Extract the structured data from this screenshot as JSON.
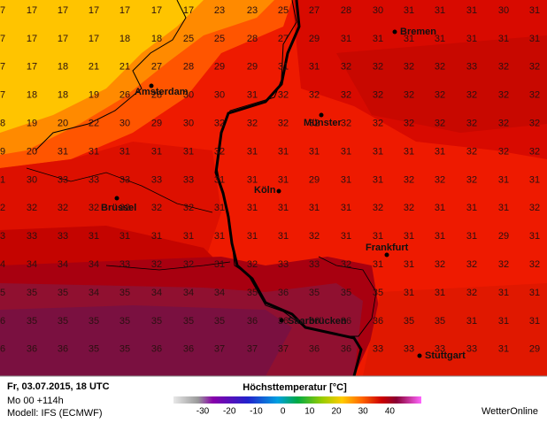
{
  "grid": [
    [
      7,
      17,
      17,
      17,
      17,
      17,
      17,
      23,
      23,
      25,
      27,
      28,
      30,
      31,
      31,
      31,
      30,
      31
    ],
    [
      7,
      17,
      17,
      17,
      18,
      18,
      25,
      25,
      28,
      27,
      29,
      31,
      31,
      31,
      31,
      31,
      31,
      31
    ],
    [
      7,
      17,
      18,
      21,
      21,
      27,
      28,
      29,
      29,
      31,
      31,
      32,
      32,
      32,
      32,
      33,
      32,
      32
    ],
    [
      7,
      18,
      18,
      19,
      26,
      28,
      30,
      30,
      31,
      32,
      32,
      32,
      32,
      32,
      32,
      32,
      32,
      32
    ],
    [
      8,
      19,
      20,
      22,
      30,
      29,
      30,
      32,
      32,
      32,
      32,
      32,
      32,
      32,
      32,
      32,
      32,
      32
    ],
    [
      9,
      20,
      31,
      31,
      31,
      31,
      31,
      32,
      31,
      31,
      31,
      31,
      31,
      31,
      31,
      32,
      32,
      32
    ],
    [
      1,
      30,
      33,
      33,
      33,
      33,
      33,
      31,
      31,
      31,
      29,
      31,
      31,
      32,
      32,
      32,
      31,
      31
    ],
    [
      2,
      32,
      32,
      32,
      32,
      32,
      32,
      31,
      31,
      31,
      31,
      31,
      32,
      32,
      31,
      31,
      31,
      32
    ],
    [
      3,
      33,
      33,
      31,
      31,
      31,
      31,
      31,
      31,
      31,
      32,
      31,
      31,
      31,
      31,
      31,
      29,
      31
    ],
    [
      4,
      34,
      34,
      34,
      33,
      32,
      32,
      31,
      32,
      33,
      33,
      32,
      31,
      31,
      32,
      32,
      32,
      32
    ],
    [
      5,
      35,
      35,
      34,
      35,
      34,
      34,
      34,
      35,
      36,
      35,
      35,
      35,
      31,
      31,
      32,
      31,
      31
    ],
    [
      6,
      35,
      35,
      35,
      35,
      35,
      35,
      35,
      36,
      36,
      36,
      36,
      36,
      35,
      35,
      31,
      31,
      31
    ],
    [
      6,
      36,
      36,
      35,
      35,
      36,
      36,
      37,
      37,
      37,
      36,
      36,
      33,
      33,
      33,
      33,
      31,
      29
    ]
  ],
  "cities": [
    "Bremen",
    "Amsterdam",
    "Münster",
    "Köln",
    "Brüssel",
    "Frankfurt",
    "Saarbrücken",
    "Stuttgart"
  ],
  "footer": {
    "date": "Fr, 03.07.2015, 18 UTC",
    "run": "Mo 00 +114h",
    "model": "Modell: IFS (ECMWF)",
    "title": "Höchsttemperatur [°C]",
    "brand": "WetterOnline"
  },
  "colorbar_ticks": [
    -30,
    -20,
    -10,
    0,
    10,
    20,
    30,
    40
  ]
}
